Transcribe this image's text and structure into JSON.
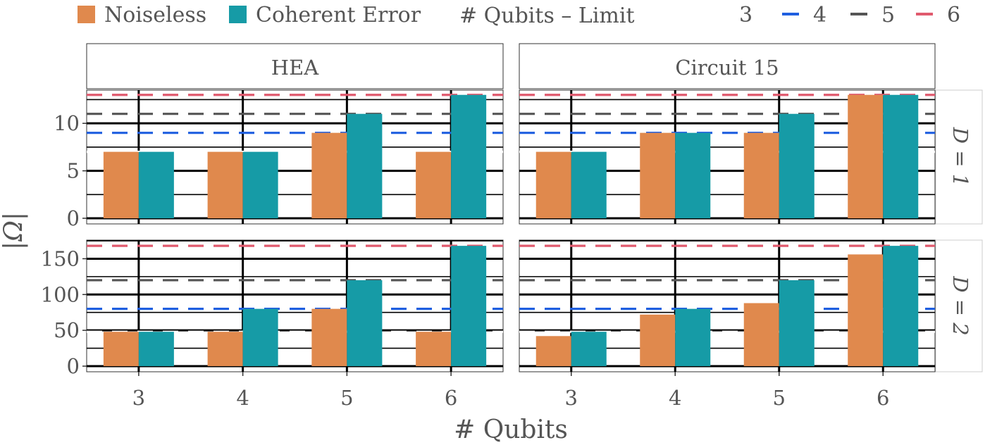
{
  "legend": {
    "fill_title": "",
    "fill_items": [
      {
        "label": "Noiseless",
        "color": "#E0894D"
      },
      {
        "label": "Coherent Error",
        "color": "#169BA6"
      }
    ],
    "line_title": "# Qubits – Limit",
    "line_items": [
      {
        "label": "3",
        "color": "#ffffff"
      },
      {
        "label": "4",
        "color": "#1F5FE0"
      },
      {
        "label": "5",
        "color": "#555555"
      },
      {
        "label": "6",
        "color": "#E05A6E"
      }
    ]
  },
  "axes": {
    "xlabel": "# Qubits",
    "ylabel": "|Ω|"
  },
  "chart_data": {
    "type": "bar",
    "facet_cols": [
      "HEA",
      "Circuit 15"
    ],
    "facet_rows": [
      "D = 1",
      "D = 2"
    ],
    "categories": [
      "3",
      "4",
      "5",
      "6"
    ],
    "series_names": [
      "Noiseless",
      "Coherent Error"
    ],
    "limits": {
      "D = 1": {
        "3": 7,
        "4": 9,
        "5": 11,
        "6": 13
      },
      "D = 2": {
        "3": 48,
        "4": 80,
        "5": 120,
        "6": 168
      }
    },
    "panels": [
      {
        "col": "HEA",
        "row": "D = 1",
        "ylim": [
          0,
          13.5
        ],
        "yticks": [
          0,
          5,
          10
        ],
        "series": [
          {
            "name": "Noiseless",
            "values": [
              7,
              7,
              9,
              7
            ]
          },
          {
            "name": "Coherent Error",
            "values": [
              7,
              7,
              11,
              13
            ]
          }
        ]
      },
      {
        "col": "Circuit 15",
        "row": "D = 1",
        "ylim": [
          0,
          13.5
        ],
        "yticks": [
          0,
          5,
          10
        ],
        "series": [
          {
            "name": "Noiseless",
            "values": [
              7,
              9,
              9,
              13
            ]
          },
          {
            "name": "Coherent Error",
            "values": [
              7,
              9,
              11,
              13
            ]
          }
        ]
      },
      {
        "col": "HEA",
        "row": "D = 2",
        "ylim": [
          0,
          176
        ],
        "yticks": [
          0,
          50,
          100,
          150
        ],
        "series": [
          {
            "name": "Noiseless",
            "values": [
              48,
              48,
              80,
              48
            ]
          },
          {
            "name": "Coherent Error",
            "values": [
              48,
              80,
              120,
              168
            ]
          }
        ]
      },
      {
        "col": "Circuit 15",
        "row": "D = 2",
        "ylim": [
          0,
          176
        ],
        "yticks": [
          0,
          50,
          100,
          150
        ],
        "series": [
          {
            "name": "Noiseless",
            "values": [
              42,
              72,
              88,
              156
            ]
          },
          {
            "name": "Coherent Error",
            "values": [
              48,
              80,
              120,
              168
            ]
          }
        ]
      }
    ],
    "grid": true,
    "legend_position": "top"
  }
}
